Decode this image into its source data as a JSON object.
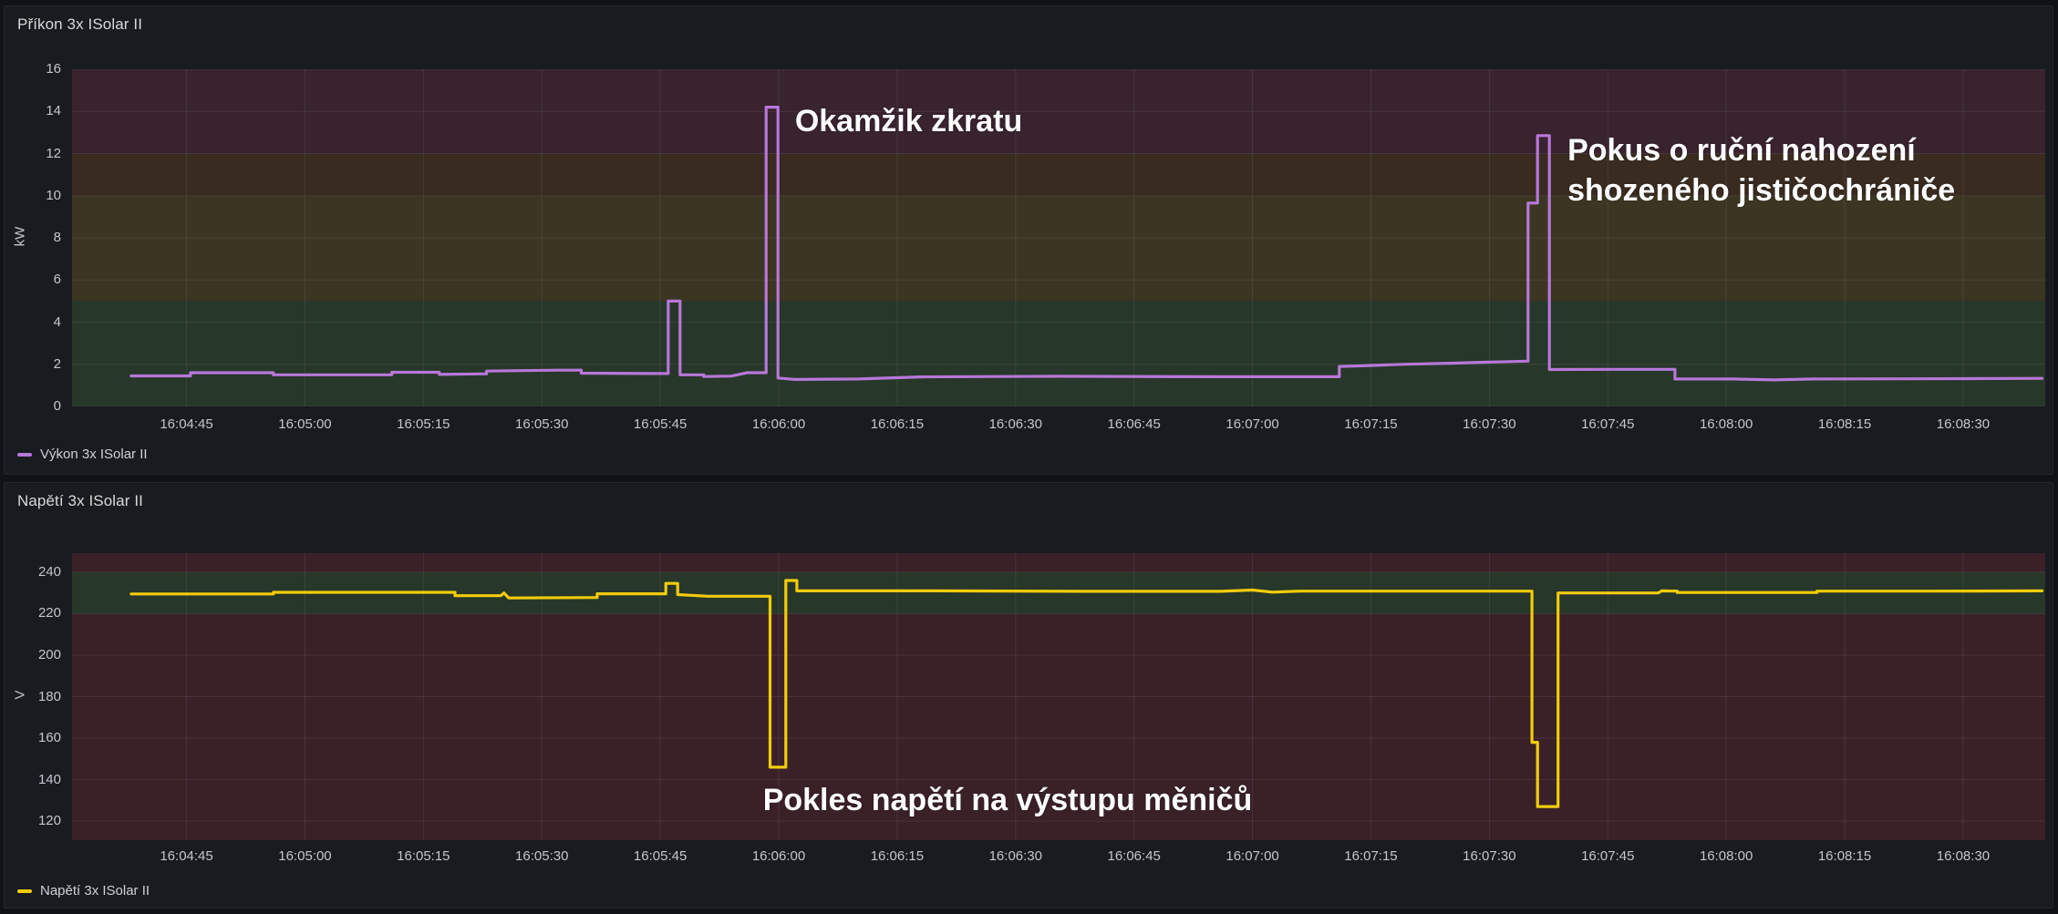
{
  "panel1": {
    "title": "Příkon 3x ISolar II",
    "unit": "kW",
    "legend": "Výkon 3x ISolar II",
    "series_color": "#b877d9"
  },
  "panel2": {
    "title": "Napětí 3x ISolar II",
    "unit": "V",
    "legend": "Napětí 3x ISolar II",
    "series_color": "#f2cc0c"
  },
  "chart_data": [
    {
      "id": "power",
      "type": "line",
      "title": "Příkon 3x ISolar II",
      "ylabel": "kW",
      "legend": [
        "Výkon 3x ISolar II"
      ],
      "legend_position": "bottom-left",
      "color": "#b877d9",
      "grid": true,
      "x_domain_s": [
        30.5,
        280.4
      ],
      "y_domain": [
        0,
        16
      ],
      "y_ticks": [
        0,
        2,
        4,
        6,
        8,
        10,
        12,
        14,
        16
      ],
      "x_ticks": [
        {
          "t": 45,
          "label": "16:04:45"
        },
        {
          "t": 60,
          "label": "16:05:00"
        },
        {
          "t": 75,
          "label": "16:05:15"
        },
        {
          "t": 90,
          "label": "16:05:30"
        },
        {
          "t": 105,
          "label": "16:05:45"
        },
        {
          "t": 120,
          "label": "16:06:00"
        },
        {
          "t": 135,
          "label": "16:06:15"
        },
        {
          "t": 150,
          "label": "16:06:30"
        },
        {
          "t": 165,
          "label": "16:06:45"
        },
        {
          "t": 180,
          "label": "16:07:00"
        },
        {
          "t": 195,
          "label": "16:07:15"
        },
        {
          "t": 210,
          "label": "16:07:30"
        },
        {
          "t": 225,
          "label": "16:07:45"
        },
        {
          "t": 240,
          "label": "16:08:00"
        },
        {
          "t": 255,
          "label": "16:08:15"
        },
        {
          "t": 270,
          "label": "16:08:30"
        }
      ],
      "threshold_bands": [
        {
          "from": 0,
          "to": 5,
          "color": "#273729"
        },
        {
          "from": 5,
          "to": 10,
          "color": "#3b3622"
        },
        {
          "from": 10,
          "to": 12,
          "color": "#392b20"
        },
        {
          "from": 12,
          "to": 16,
          "color": "#38232e"
        }
      ],
      "points": [
        [
          38,
          1.45
        ],
        [
          45.5,
          1.45
        ],
        [
          45.5,
          1.6
        ],
        [
          56,
          1.6
        ],
        [
          56,
          1.5
        ],
        [
          71,
          1.5
        ],
        [
          71,
          1.62
        ],
        [
          77,
          1.62
        ],
        [
          77,
          1.52
        ],
        [
          83,
          1.55
        ],
        [
          83,
          1.68
        ],
        [
          92,
          1.72
        ],
        [
          95,
          1.72
        ],
        [
          95,
          1.58
        ],
        [
          103,
          1.56
        ],
        [
          106,
          1.56
        ],
        [
          106,
          5.0
        ],
        [
          107.5,
          5.0
        ],
        [
          107.5,
          1.5
        ],
        [
          110.5,
          1.5
        ],
        [
          110.5,
          1.42
        ],
        [
          114,
          1.44
        ],
        [
          116,
          1.6
        ],
        [
          118.4,
          1.6
        ],
        [
          118.4,
          14.2
        ],
        [
          119.9,
          14.2
        ],
        [
          119.9,
          1.35
        ],
        [
          122,
          1.28
        ],
        [
          130,
          1.3
        ],
        [
          138,
          1.4
        ],
        [
          155,
          1.43
        ],
        [
          175,
          1.41
        ],
        [
          191,
          1.41
        ],
        [
          191,
          1.9
        ],
        [
          194,
          1.93
        ],
        [
          199,
          2.0
        ],
        [
          205,
          2.05
        ],
        [
          210,
          2.1
        ],
        [
          214.9,
          2.15
        ],
        [
          214.9,
          9.65
        ],
        [
          216.1,
          9.65
        ],
        [
          216.1,
          12.85
        ],
        [
          217.6,
          12.85
        ],
        [
          217.6,
          1.75
        ],
        [
          226,
          1.76
        ],
        [
          233.5,
          1.76
        ],
        [
          233.5,
          1.3
        ],
        [
          241,
          1.3
        ],
        [
          246,
          1.26
        ],
        [
          251,
          1.3
        ],
        [
          263,
          1.31
        ],
        [
          280,
          1.33
        ]
      ],
      "annotations": [
        {
          "text": "Okamžik zkratu",
          "t": 120.9,
          "v": 13.55,
          "dx": 10,
          "valign": "middle"
        },
        {
          "text": "Pokus o ruční nahození\nshozeného jističochrániče",
          "t": 219.9,
          "v": 13.1,
          "dx": 0,
          "valign": "top"
        }
      ]
    },
    {
      "id": "voltage",
      "type": "line",
      "title": "Napětí 3x ISolar II",
      "ylabel": "V",
      "legend": [
        "Napětí 3x ISolar II"
      ],
      "legend_position": "bottom-left",
      "color": "#f2cc0c",
      "grid": true,
      "x_domain_s": [
        30.5,
        280.4
      ],
      "y_domain": [
        110.8,
        249.2
      ],
      "y_ticks": [
        120,
        140,
        160,
        180,
        200,
        220,
        240
      ],
      "x_ticks": [
        {
          "t": 45,
          "label": "16:04:45"
        },
        {
          "t": 60,
          "label": "16:05:00"
        },
        {
          "t": 75,
          "label": "16:05:15"
        },
        {
          "t": 90,
          "label": "16:05:30"
        },
        {
          "t": 105,
          "label": "16:05:45"
        },
        {
          "t": 120,
          "label": "16:06:00"
        },
        {
          "t": 135,
          "label": "16:06:15"
        },
        {
          "t": 150,
          "label": "16:06:30"
        },
        {
          "t": 165,
          "label": "16:06:45"
        },
        {
          "t": 180,
          "label": "16:07:00"
        },
        {
          "t": 195,
          "label": "16:07:15"
        },
        {
          "t": 210,
          "label": "16:07:30"
        },
        {
          "t": 225,
          "label": "16:07:45"
        },
        {
          "t": 240,
          "label": "16:08:00"
        },
        {
          "t": 255,
          "label": "16:08:15"
        },
        {
          "t": 270,
          "label": "16:08:30"
        }
      ],
      "threshold_bands": [
        {
          "from": 110.8,
          "to": 220,
          "color": "#3a2128"
        },
        {
          "from": 220,
          "to": 240,
          "color": "#273729"
        },
        {
          "from": 240,
          "to": 249.2,
          "color": "#3a2128"
        }
      ],
      "points": [
        [
          38,
          229.5
        ],
        [
          56,
          229.5
        ],
        [
          56,
          230.3
        ],
        [
          79,
          230.3
        ],
        [
          79,
          228.7
        ],
        [
          84.8,
          228.7
        ],
        [
          85.2,
          230
        ],
        [
          85.8,
          227.6
        ],
        [
          97,
          227.8
        ],
        [
          97,
          229.6
        ],
        [
          105.7,
          229.6
        ],
        [
          105.7,
          234.6
        ],
        [
          107.2,
          234.6
        ],
        [
          107.2,
          229.2
        ],
        [
          111,
          228.4
        ],
        [
          118.9,
          228.4
        ],
        [
          118.9,
          146
        ],
        [
          120.9,
          146
        ],
        [
          120.9,
          236
        ],
        [
          122.3,
          236
        ],
        [
          122.3,
          231
        ],
        [
          140,
          231
        ],
        [
          158,
          230.8
        ],
        [
          176,
          230.8
        ],
        [
          180,
          231.4
        ],
        [
          182.5,
          230.4
        ],
        [
          186,
          230.9
        ],
        [
          200,
          230.9
        ],
        [
          215.4,
          230.9
        ],
        [
          215.4,
          158
        ],
        [
          216.1,
          158
        ],
        [
          216.1,
          127
        ],
        [
          218.7,
          127
        ],
        [
          218.7,
          230
        ],
        [
          228,
          230
        ],
        [
          231.4,
          230
        ],
        [
          231.8,
          231
        ],
        [
          233.8,
          230.9
        ],
        [
          233.8,
          230.2
        ],
        [
          247,
          230.2
        ],
        [
          251.5,
          230.2
        ],
        [
          251.5,
          230.9
        ],
        [
          266,
          230.9
        ],
        [
          280,
          231
        ]
      ],
      "annotations": [
        {
          "text": "Pokles napětí na výstupu měničů",
          "t": 118.0,
          "v": 130,
          "dx": 0,
          "valign": "middle"
        }
      ]
    }
  ]
}
